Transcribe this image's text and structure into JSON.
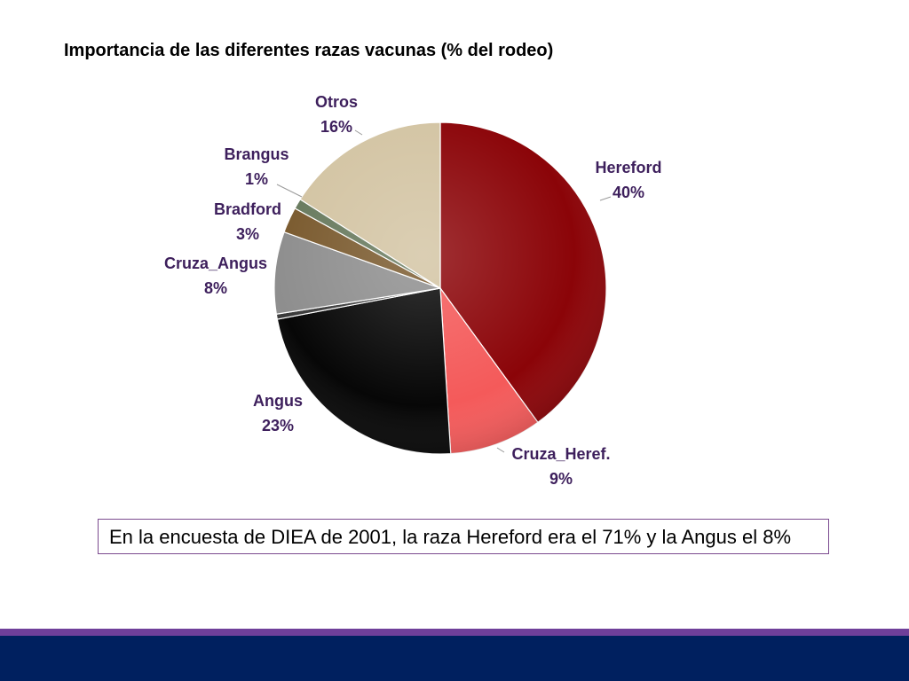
{
  "chart_data": {
    "type": "pie",
    "title": "Importancia de las diferentes razas vacunas (% del rodeo)",
    "start_angle_deg": 0,
    "direction": "clockwise",
    "slices": [
      {
        "name": "Hereford",
        "value": 40,
        "label": "40%",
        "color": "#8b0408"
      },
      {
        "name": "Cruza_Heref.",
        "value": 9,
        "label": "9%",
        "color": "#f45a5a"
      },
      {
        "name": "Angus",
        "value": 23,
        "label": "23%",
        "color": "#070707"
      },
      {
        "name": "",
        "value": 0.5,
        "label": "",
        "color": "#3a3a3a"
      },
      {
        "name": "Cruza_Angus",
        "value": 8,
        "label": "8%",
        "color": "#8e8e8e"
      },
      {
        "name": "Bradford",
        "value": 2.5,
        "label": "3%",
        "color": "#7a5a2e"
      },
      {
        "name": "Brangus",
        "value": 1,
        "label": "1%",
        "color": "#687a5e"
      },
      {
        "name": "Otros",
        "value": 16,
        "label": "16%",
        "color": "#d3c4a3"
      }
    ],
    "label_color": "#3d1f5c"
  },
  "note": {
    "text": "En la encuesta de DIEA de 2001, la raza Hereford era el 71% y la Angus el 8%"
  },
  "footer": {
    "stripe_color": "#6f3f9a",
    "bar_color": "#00205f"
  }
}
